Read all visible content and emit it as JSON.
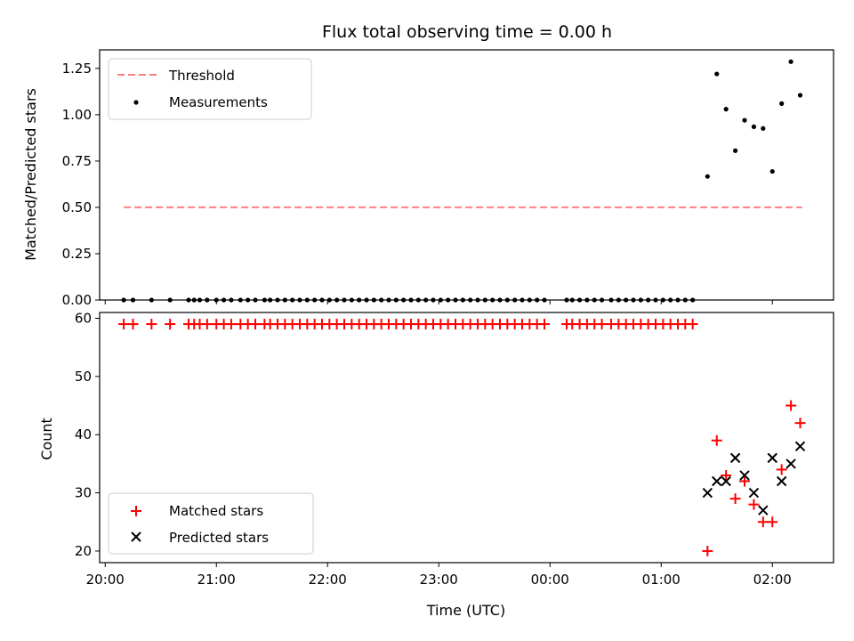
{
  "chart_data": [
    {
      "type": "scatter",
      "title": "Flux total observing time = 0.00 h",
      "xlabel": "",
      "ylabel": "Matched/Predicted stars",
      "ylim": [
        0,
        1.35
      ],
      "yticks": [
        "0.00",
        "0.25",
        "0.50",
        "0.75",
        "1.00",
        "1.25"
      ],
      "ytick_values": [
        0,
        0.25,
        0.5,
        0.75,
        1.0,
        1.25
      ],
      "legend_position": "top-left",
      "threshold": {
        "name": "Threshold",
        "value": 0.5,
        "x_start": "20:10",
        "x_end": "02:16",
        "color": "#ff7f7f"
      },
      "series": [
        {
          "name": "Measurements",
          "color": "#000000",
          "x": [
            "20:10",
            "20:15",
            "20:25",
            "20:35",
            "20:45",
            "20:48",
            "20:51",
            "20:55",
            "21:00",
            "21:04",
            "21:08",
            "21:13",
            "21:17",
            "21:21",
            "21:26",
            "21:29",
            "21:33",
            "21:37",
            "21:41",
            "21:45",
            "21:49",
            "21:53",
            "21:57",
            "22:01",
            "22:05",
            "22:09",
            "22:13",
            "22:17",
            "22:21",
            "22:25",
            "22:29",
            "22:33",
            "22:37",
            "22:41",
            "22:45",
            "22:49",
            "22:53",
            "22:57",
            "23:01",
            "23:05",
            "23:09",
            "23:13",
            "23:17",
            "23:21",
            "23:25",
            "23:29",
            "23:33",
            "23:37",
            "23:41",
            "23:45",
            "23:49",
            "23:53",
            "23:57",
            "00:09",
            "00:12",
            "00:16",
            "00:20",
            "00:24",
            "00:28",
            "00:33",
            "00:37",
            "00:41",
            "00:45",
            "00:49",
            "00:53",
            "00:57",
            "01:01",
            "01:05",
            "01:09",
            "01:13",
            "01:17",
            "01:25",
            "01:30",
            "01:35",
            "01:40",
            "01:45",
            "01:50",
            "01:55",
            "02:00",
            "02:05",
            "02:10",
            "02:15"
          ],
          "y": [
            0,
            0,
            0,
            0,
            0,
            0,
            0,
            0,
            0,
            0,
            0,
            0,
            0,
            0,
            0,
            0,
            0,
            0,
            0,
            0,
            0,
            0,
            0,
            0,
            0,
            0,
            0,
            0,
            0,
            0,
            0,
            0,
            0,
            0,
            0,
            0,
            0,
            0,
            0,
            0,
            0,
            0,
            0,
            0,
            0,
            0,
            0,
            0,
            0,
            0,
            0,
            0,
            0,
            0,
            0,
            0,
            0,
            0,
            0,
            0,
            0,
            0,
            0,
            0,
            0,
            0,
            0,
            0,
            0,
            0,
            0,
            0.667,
            1.22,
            1.03,
            0.806,
            0.97,
            0.935,
            0.926,
            0.694,
            1.06,
            1.286,
            1.105
          ]
        }
      ]
    },
    {
      "type": "scatter",
      "xlabel": "Time (UTC)",
      "ylabel": "Count",
      "ylim": [
        18,
        61
      ],
      "yticks": [
        "20",
        "30",
        "40",
        "50",
        "60"
      ],
      "ytick_values": [
        20,
        30,
        40,
        50,
        60
      ],
      "xticks": [
        "20:00",
        "21:00",
        "22:00",
        "23:00",
        "00:00",
        "01:00",
        "02:00"
      ],
      "xlim": [
        "19:57",
        "02:33"
      ],
      "legend_position": "bottom-left",
      "series": [
        {
          "name": "Matched stars",
          "color": "#ff0000",
          "marker": "+",
          "x": [
            "20:10",
            "20:15",
            "20:25",
            "20:35",
            "20:45",
            "20:48",
            "20:51",
            "20:55",
            "21:00",
            "21:04",
            "21:08",
            "21:13",
            "21:17",
            "21:21",
            "21:26",
            "21:29",
            "21:33",
            "21:37",
            "21:41",
            "21:45",
            "21:49",
            "21:53",
            "21:57",
            "22:01",
            "22:05",
            "22:09",
            "22:13",
            "22:17",
            "22:21",
            "22:25",
            "22:29",
            "22:33",
            "22:37",
            "22:41",
            "22:45",
            "22:49",
            "22:53",
            "22:57",
            "23:01",
            "23:05",
            "23:09",
            "23:13",
            "23:17",
            "23:21",
            "23:25",
            "23:29",
            "23:33",
            "23:37",
            "23:41",
            "23:45",
            "23:49",
            "23:53",
            "23:57",
            "00:09",
            "00:12",
            "00:16",
            "00:20",
            "00:24",
            "00:28",
            "00:33",
            "00:37",
            "00:41",
            "00:45",
            "00:49",
            "00:53",
            "00:57",
            "01:01",
            "01:05",
            "01:09",
            "01:13",
            "01:17",
            "01:25",
            "01:30",
            "01:35",
            "01:40",
            "01:45",
            "01:50",
            "01:55",
            "02:00",
            "02:05",
            "02:10",
            "02:15"
          ],
          "y": [
            59,
            59,
            59,
            59,
            59,
            59,
            59,
            59,
            59,
            59,
            59,
            59,
            59,
            59,
            59,
            59,
            59,
            59,
            59,
            59,
            59,
            59,
            59,
            59,
            59,
            59,
            59,
            59,
            59,
            59,
            59,
            59,
            59,
            59,
            59,
            59,
            59,
            59,
            59,
            59,
            59,
            59,
            59,
            59,
            59,
            59,
            59,
            59,
            59,
            59,
            59,
            59,
            59,
            59,
            59,
            59,
            59,
            59,
            59,
            59,
            59,
            59,
            59,
            59,
            59,
            59,
            59,
            59,
            59,
            59,
            59,
            20,
            39,
            33,
            29,
            32,
            28,
            25,
            25,
            34,
            45,
            42
          ]
        },
        {
          "name": "Predicted stars",
          "color": "#000000",
          "marker": "x",
          "x": [
            "01:25",
            "01:30",
            "01:35",
            "01:40",
            "01:45",
            "01:50",
            "01:55",
            "02:00",
            "02:05",
            "02:10",
            "02:15"
          ],
          "y": [
            30,
            32,
            32,
            36,
            33,
            30,
            27,
            36,
            32,
            35,
            38
          ]
        }
      ]
    }
  ]
}
